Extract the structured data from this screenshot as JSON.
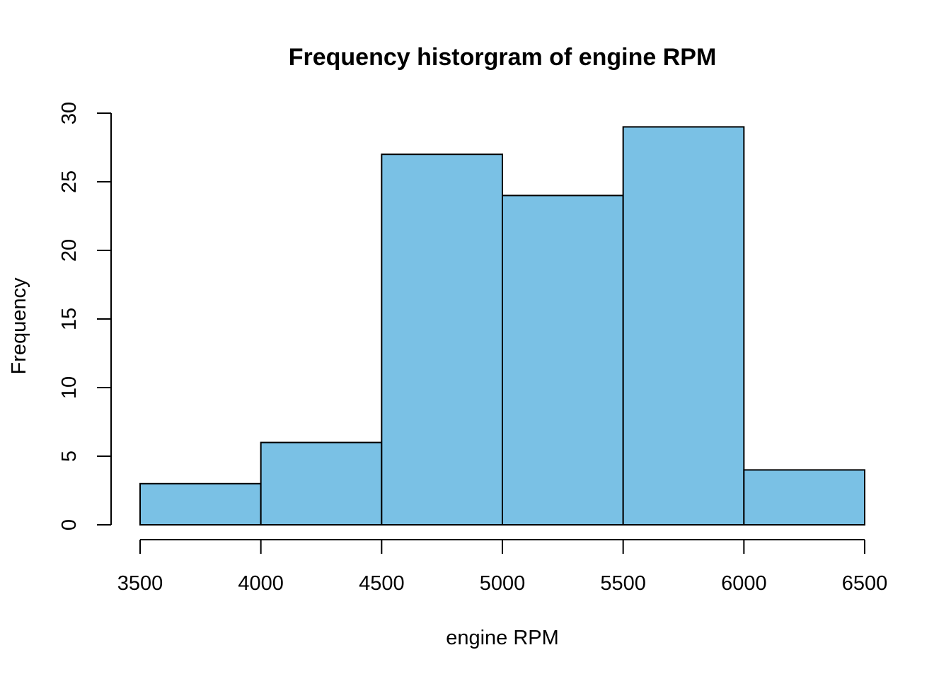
{
  "chart_data": {
    "type": "bar",
    "subtype": "histogram",
    "title": "Frequency historgram of engine RPM",
    "xlabel": "engine RPM",
    "ylabel": "Frequency",
    "bins": [
      {
        "start": 3500,
        "end": 4000,
        "count": 3
      },
      {
        "start": 4000,
        "end": 4500,
        "count": 6
      },
      {
        "start": 4500,
        "end": 5000,
        "count": 27
      },
      {
        "start": 5000,
        "end": 5500,
        "count": 24
      },
      {
        "start": 5500,
        "end": 6000,
        "count": 29
      },
      {
        "start": 6000,
        "end": 6500,
        "count": 4
      }
    ],
    "xlim": [
      3500,
      6500
    ],
    "ylim": [
      0,
      30
    ],
    "xticks": [
      3500,
      4000,
      4500,
      5000,
      5500,
      6000,
      6500
    ],
    "yticks": [
      0,
      5,
      10,
      15,
      20,
      25,
      30
    ],
    "bar_color": "#7AC1E5",
    "edge_color": "#000000",
    "grid": false,
    "legend": "none"
  }
}
